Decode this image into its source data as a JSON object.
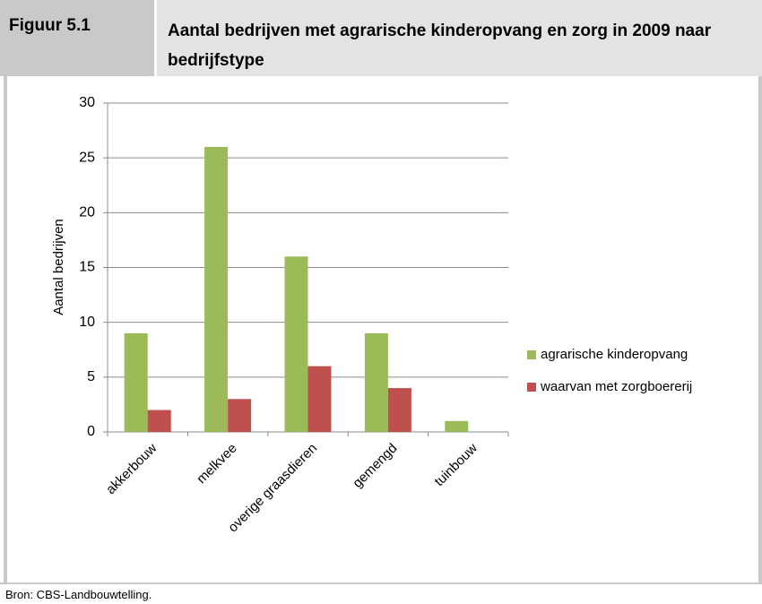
{
  "figure": {
    "label": "Figuur 5.1",
    "source": "Bron: CBS-Landbouwtelling."
  },
  "chart_data": {
    "type": "bar",
    "title": "Aantal bedrijven met agrarische kinderopvang en zorg in 2009 naar bedrijfstype",
    "y_label": "Aantal bedrijven",
    "categories": [
      "akkerbouw",
      "melkvee",
      "overige graasdieren",
      "gemengd",
      "tuinbouw"
    ],
    "series": [
      {
        "name": "agrarische kinderopvang",
        "color": "#9bbb59",
        "values": [
          9,
          26,
          16,
          9,
          1
        ]
      },
      {
        "name": "waarvan met zorgboererij",
        "color": "#c0504d",
        "values": [
          2,
          3,
          6,
          4,
          0
        ]
      }
    ],
    "ylim": [
      0,
      30
    ],
    "yticks": [
      0,
      5,
      10,
      15,
      20,
      25,
      30
    ],
    "grid": true,
    "legend": "right"
  }
}
